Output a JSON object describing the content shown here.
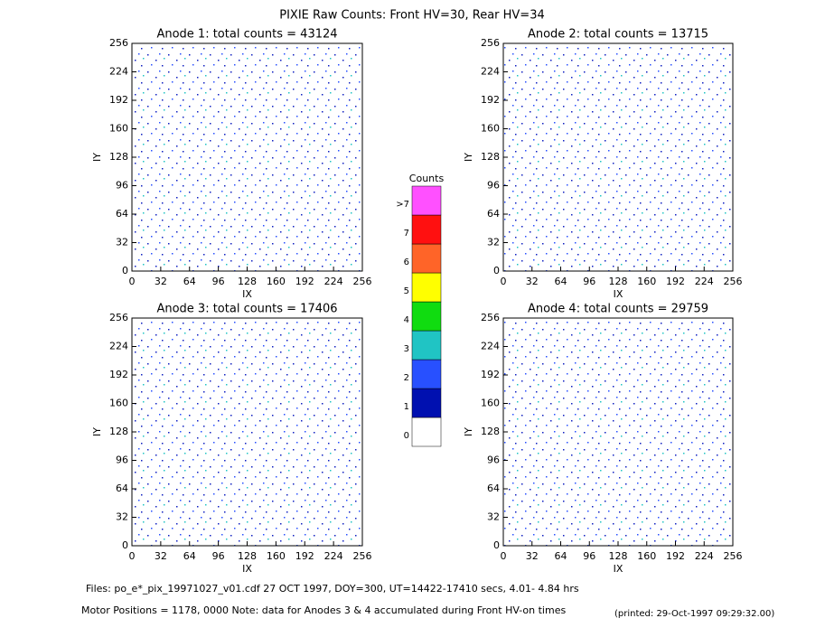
{
  "title": "PIXIE Raw Counts:  Front HV=30, Rear HV=34",
  "chart_data": [
    {
      "type": "heatmap",
      "title": "Anode 1: total counts = 43124",
      "xlabel": "IX",
      "ylabel": "IY",
      "xlim": [
        0,
        256
      ],
      "ylim": [
        0,
        256
      ],
      "xticks": [
        0,
        32,
        64,
        96,
        128,
        160,
        192,
        224,
        256
      ],
      "yticks": [
        0,
        32,
        64,
        96,
        128,
        160,
        192,
        224,
        256
      ]
    },
    {
      "type": "heatmap",
      "title": "Anode 2: total counts = 13715",
      "xlabel": "IX",
      "ylabel": "IY",
      "xlim": [
        0,
        256
      ],
      "ylim": [
        0,
        256
      ],
      "xticks": [
        0,
        32,
        64,
        96,
        128,
        160,
        192,
        224,
        256
      ],
      "yticks": [
        0,
        32,
        64,
        96,
        128,
        160,
        192,
        224,
        256
      ]
    },
    {
      "type": "heatmap",
      "title": "Anode 3: total counts = 17406",
      "xlabel": "IX",
      "ylabel": "IY",
      "xlim": [
        0,
        256
      ],
      "ylim": [
        0,
        256
      ],
      "xticks": [
        0,
        32,
        64,
        96,
        128,
        160,
        192,
        224,
        256
      ],
      "yticks": [
        0,
        32,
        64,
        96,
        128,
        160,
        192,
        224,
        256
      ]
    },
    {
      "type": "heatmap",
      "title": "Anode 4: total counts = 29759",
      "xlabel": "IX",
      "ylabel": "IY",
      "xlim": [
        0,
        256
      ],
      "ylim": [
        0,
        256
      ],
      "xticks": [
        0,
        32,
        64,
        96,
        128,
        160,
        192,
        224,
        256
      ],
      "yticks": [
        0,
        32,
        64,
        96,
        128,
        160,
        192,
        224,
        256
      ]
    }
  ],
  "colorbar": {
    "title": "Counts",
    "labels": [
      "0",
      "1",
      "2",
      "3",
      "4",
      "5",
      "6",
      "7",
      ">7"
    ],
    "colors": [
      "#ffffff",
      "#0010b0",
      "#2850ff",
      "#20c4c4",
      "#10dc10",
      "#ffff00",
      "#ff6428",
      "#ff1010",
      "#ff50ff"
    ]
  },
  "footer": {
    "files": "Files: po_e*_pix_19971027_v01.cdf   27 OCT 1997, DOY=300, UT=14422-17410 secs,  4.01- 4.84 hrs",
    "motor": "Motor Positions = 1178, 0000   Note: data for Anodes 3 & 4 accumulated during Front HV-on times",
    "printed": "(printed: 29-Oct-1997 09:29:32.00)"
  }
}
